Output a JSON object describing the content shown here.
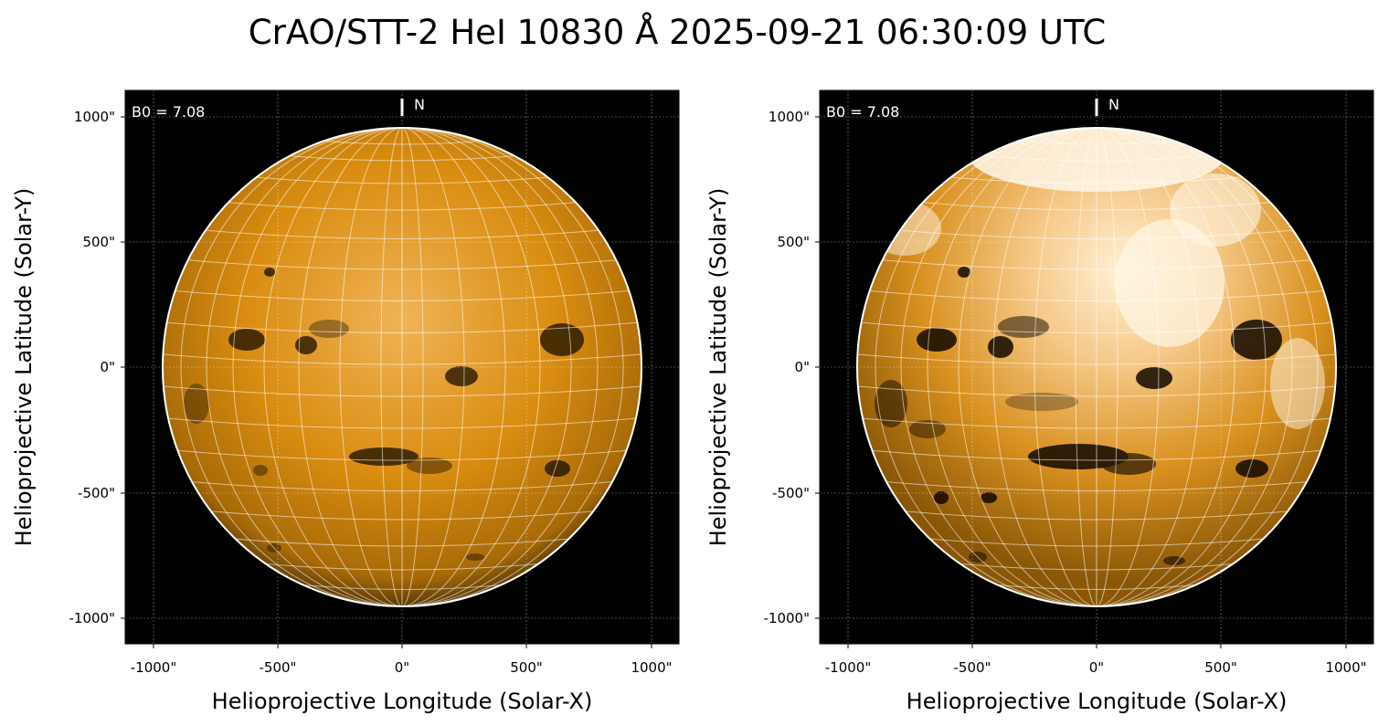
{
  "title": "CrAO/STT-2 HeI 10830 Å 2025-09-21 06:30:09 UTC",
  "colors": {
    "disk_base": "#d98c0a",
    "disk_center": "#f0b85a",
    "background": "#000000",
    "grid": "#ffffff"
  },
  "axes": {
    "xlabel": "Helioprojective Longitude (Solar-X)",
    "ylabel": "Helioprojective Latitude (Solar-Y)",
    "xticks": [
      "-1000\"",
      "-500\"",
      "0\"",
      "500\"",
      "1000\""
    ],
    "yticks": [
      "1000\"",
      "500\"",
      "0\"",
      "-500\"",
      "-1000\""
    ],
    "range": [
      -1100,
      1100
    ]
  },
  "panels": [
    {
      "id": "left",
      "b0_label": "B0 = 7.08",
      "north_label": "N",
      "scaling": "linear"
    },
    {
      "id": "right",
      "b0_label": "B0 = 7.08",
      "north_label": "N",
      "scaling": "contrast-enhanced"
    }
  ]
}
